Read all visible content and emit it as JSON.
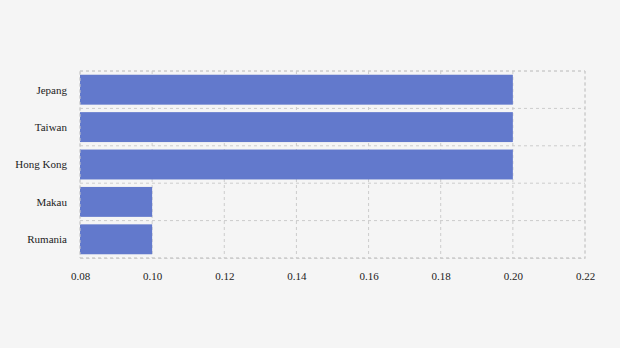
{
  "chart_data": {
    "type": "bar",
    "orientation": "horizontal",
    "categories": [
      "Jepang",
      "Taiwan",
      "Hong Kong",
      "Makau",
      "Rumania"
    ],
    "values": [
      0.2,
      0.2,
      0.2,
      0.1,
      0.1
    ],
    "color": "#6279cc",
    "xlim": [
      0.08,
      0.22
    ],
    "xticks": [
      0.08,
      {
        "value": 0.1,
        "label": "0.10"
      },
      0.12,
      0.14,
      0.16,
      0.18,
      {
        "value": 0.2,
        "label": "0.20"
      },
      0.22
    ],
    "grid": true
  }
}
